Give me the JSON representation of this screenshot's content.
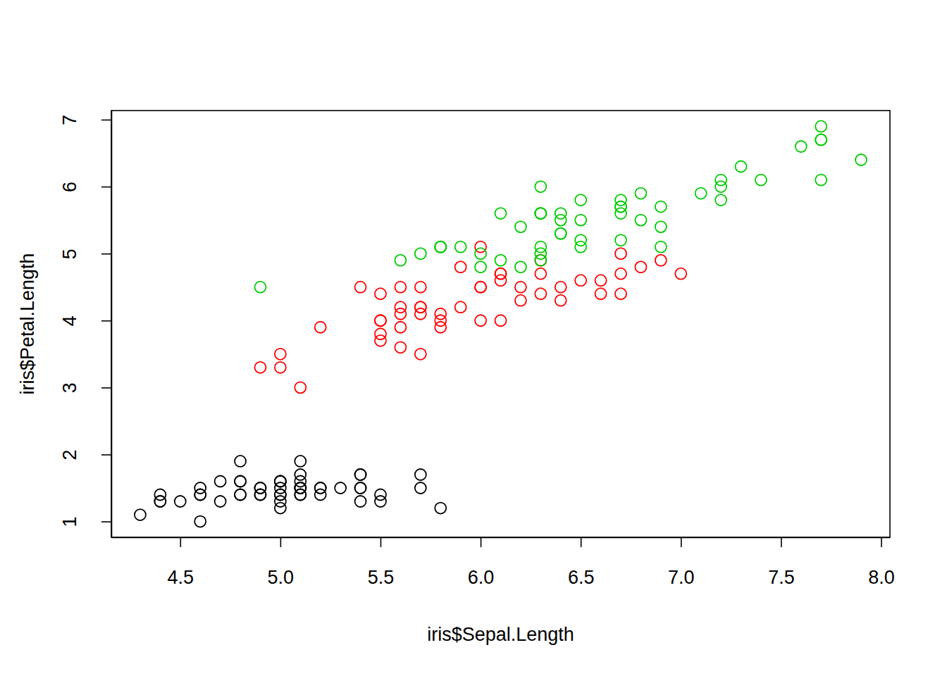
{
  "chart_data": {
    "type": "scatter",
    "marker": "circle",
    "xlabel": "iris$Sepal.Length",
    "ylabel": "iris$Petal.Length",
    "xlim": [
      4.156,
      8.044
    ],
    "ylim": [
      0.764,
      7.136
    ],
    "xticks": [
      4.5,
      {
        "value": 5,
        "label": "5.0"
      },
      5.5,
      {
        "value": 6,
        "label": "6.0"
      },
      6.5,
      {
        "value": 7,
        "label": "7.0"
      },
      7.5,
      {
        "value": 8,
        "label": "8.0"
      }
    ],
    "yticks": [
      1,
      2,
      3,
      4,
      5,
      6,
      7
    ],
    "series": [
      {
        "color": "#000000",
        "x": [
          5.1,
          4.9,
          4.7,
          4.6,
          5.0,
          5.4,
          4.6,
          5.0,
          4.4,
          4.9,
          5.4,
          4.8,
          4.8,
          4.3,
          5.8,
          5.7,
          5.4,
          5.1,
          5.7,
          5.1,
          5.4,
          5.1,
          4.6,
          5.1,
          4.8,
          5.0,
          5.0,
          5.2,
          5.2,
          4.7,
          4.8,
          5.4,
          5.2,
          5.5,
          4.9,
          5.0,
          5.5,
          4.9,
          4.4,
          5.1,
          5.0,
          4.5,
          4.4,
          5.0,
          5.1,
          4.8,
          5.1,
          4.6,
          5.3,
          5.0
        ],
        "values": [
          1.4,
          1.4,
          1.3,
          1.5,
          1.4,
          1.7,
          1.4,
          1.5,
          1.4,
          1.5,
          1.5,
          1.6,
          1.4,
          1.1,
          1.2,
          1.5,
          1.3,
          1.4,
          1.7,
          1.5,
          1.7,
          1.5,
          1.0,
          1.7,
          1.9,
          1.6,
          1.6,
          1.5,
          1.4,
          1.6,
          1.6,
          1.5,
          1.5,
          1.4,
          1.5,
          1.2,
          1.3,
          1.4,
          1.3,
          1.5,
          1.3,
          1.3,
          1.3,
          1.6,
          1.9,
          1.4,
          1.6,
          1.4,
          1.5,
          1.4
        ]
      },
      {
        "color": "#FF0000",
        "x": [
          7.0,
          6.4,
          6.9,
          5.5,
          6.5,
          5.7,
          6.3,
          4.9,
          6.6,
          5.2,
          5.0,
          5.9,
          6.0,
          6.1,
          5.6,
          6.7,
          5.6,
          5.8,
          6.2,
          5.6,
          5.9,
          6.1,
          6.3,
          6.1,
          6.4,
          6.6,
          6.8,
          6.7,
          6.0,
          5.7,
          5.5,
          5.5,
          5.8,
          6.0,
          5.4,
          6.0,
          6.7,
          6.3,
          5.6,
          5.5,
          5.5,
          6.1,
          5.8,
          5.0,
          5.6,
          5.7,
          5.7,
          6.2,
          5.1,
          5.7
        ],
        "values": [
          4.7,
          4.5,
          4.9,
          4.0,
          4.6,
          4.5,
          4.7,
          3.3,
          4.6,
          3.9,
          3.5,
          4.2,
          4.0,
          4.7,
          3.6,
          4.4,
          4.5,
          4.1,
          4.5,
          3.9,
          4.8,
          4.0,
          4.9,
          4.7,
          4.3,
          4.4,
          4.8,
          5.0,
          4.5,
          3.5,
          3.8,
          3.7,
          3.9,
          5.1,
          4.5,
          4.5,
          4.7,
          4.4,
          4.1,
          4.0,
          4.4,
          4.6,
          4.0,
          3.3,
          4.2,
          4.2,
          4.2,
          4.3,
          3.0,
          4.1
        ]
      },
      {
        "color": "#00CD00",
        "x": [
          6.3,
          5.8,
          7.1,
          6.3,
          6.5,
          7.6,
          4.9,
          7.3,
          6.7,
          7.2,
          6.5,
          6.4,
          6.8,
          5.7,
          5.8,
          6.4,
          6.5,
          7.7,
          7.7,
          6.0,
          6.9,
          5.6,
          7.7,
          6.3,
          6.7,
          7.2,
          6.2,
          6.1,
          6.4,
          7.2,
          7.4,
          7.9,
          6.3,
          6.3,
          6.1,
          7.7,
          6.3,
          6.4,
          6.0,
          6.9,
          6.7,
          6.9,
          5.8,
          6.8,
          6.7,
          6.7,
          6.3,
          6.5,
          6.2,
          5.9
        ],
        "values": [
          6.0,
          5.1,
          5.9,
          5.6,
          5.8,
          6.6,
          4.5,
          6.3,
          5.8,
          6.1,
          5.1,
          5.3,
          5.5,
          5.0,
          5.1,
          5.3,
          5.5,
          6.7,
          6.9,
          5.0,
          5.7,
          4.9,
          6.7,
          4.9,
          5.7,
          6.0,
          4.8,
          4.9,
          5.6,
          5.8,
          6.1,
          6.4,
          5.6,
          5.1,
          5.6,
          6.1,
          5.6,
          5.5,
          4.8,
          5.4,
          5.6,
          5.1,
          5.1,
          5.9,
          5.7,
          5.2,
          5.0,
          5.2,
          5.4,
          5.1
        ]
      }
    ]
  }
}
